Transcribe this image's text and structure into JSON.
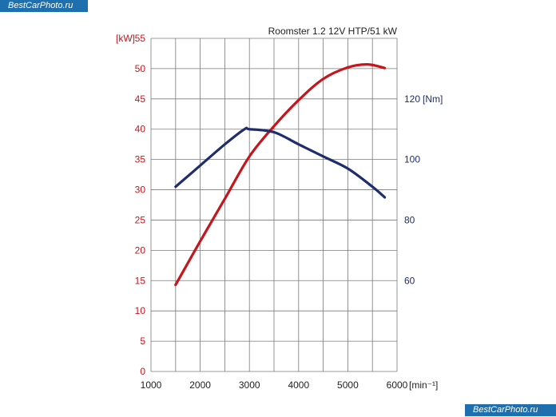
{
  "watermarks": {
    "top": "BestCarPhoto.ru",
    "bottom": "BestCarPhoto.ru"
  },
  "colors": {
    "power": "#c4161c",
    "torque": "#1f2d6d",
    "grid": "#7a7a7a",
    "watermark_bg": "#1d6fae"
  },
  "chart_data": {
    "type": "line",
    "title": "Roomster 1.2 12V HTP/51 kW",
    "xlabel": "[min⁻¹]",
    "x_ticks": [
      "1000",
      "2000",
      "3000",
      "4000",
      "5000",
      "6000"
    ],
    "xlim": [
      1000,
      6000
    ],
    "grid": true,
    "y_left": {
      "label": "[kW]",
      "ticks": [
        "0",
        "5",
        "10",
        "15",
        "20",
        "25",
        "30",
        "35",
        "40",
        "45",
        "50",
        "55"
      ],
      "ylim": [
        0,
        55
      ]
    },
    "y_right": {
      "label": "[Nm]",
      "ticks": [
        "60",
        "80",
        "100",
        "120"
      ],
      "ylim": [
        30,
        140
      ]
    },
    "series": [
      {
        "axis": "left",
        "color": "#c4161c",
        "points": [
          [
            1500,
            14.3
          ],
          [
            2000,
            21.5
          ],
          [
            2500,
            28.5
          ],
          [
            3000,
            35.5
          ],
          [
            3500,
            40.5
          ],
          [
            4000,
            44.8
          ],
          [
            4500,
            48.3
          ],
          [
            5000,
            50.2
          ],
          [
            5400,
            50.7
          ],
          [
            5750,
            50.1
          ]
        ]
      },
      {
        "axis": "right",
        "color": "#1f2d6d",
        "points": [
          [
            1500,
            91
          ],
          [
            2000,
            98
          ],
          [
            2500,
            105
          ],
          [
            2900,
            110
          ],
          [
            3000,
            110
          ],
          [
            3500,
            109
          ],
          [
            4000,
            105
          ],
          [
            4500,
            101
          ],
          [
            5000,
            97
          ],
          [
            5500,
            91
          ],
          [
            5750,
            87.5
          ]
        ]
      }
    ]
  }
}
